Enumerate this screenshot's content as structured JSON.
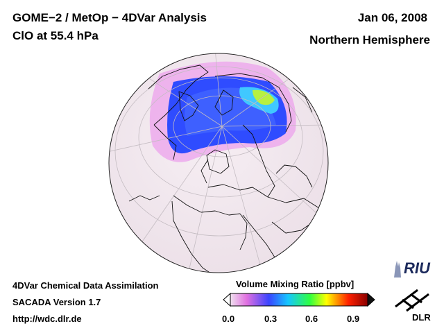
{
  "header": {
    "title_line1": "GOME−2 / MetOp − 4DVar Analysis",
    "title_line2": "ClO at 55.4 hPa",
    "date": "Jan 06, 2008",
    "hemisphere": "Northern Hemisphere"
  },
  "footer": {
    "line1": "4DVar Chemical Data Assimilation",
    "line2": "SACADA Version 1.7",
    "line3": "http://wdc.dlr.de"
  },
  "colorbar": {
    "title": "Volume Mixing Ratio [ppbv]",
    "ticks": [
      "0.0",
      "0.3",
      "0.6",
      "0.9"
    ],
    "range": [
      0.0,
      1.0
    ],
    "colors": [
      "#efe0ee",
      "#e070e0",
      "#3a44ff",
      "#16c6ff",
      "#30ff40",
      "#ffff00",
      "#ff2000",
      "#8a0000"
    ]
  },
  "logos": {
    "riu": "RIU",
    "dlr": "DLR"
  },
  "map": {
    "projection": "orthographic",
    "region": "Northern Hemisphere",
    "colors": {
      "background": "#f1e8ee",
      "coast": "#111111",
      "grid": "#bfbfbf",
      "feature_blue": "#2848ff",
      "feature_edge": "#e88ae8",
      "feature_peak": "#a8f040"
    }
  }
}
